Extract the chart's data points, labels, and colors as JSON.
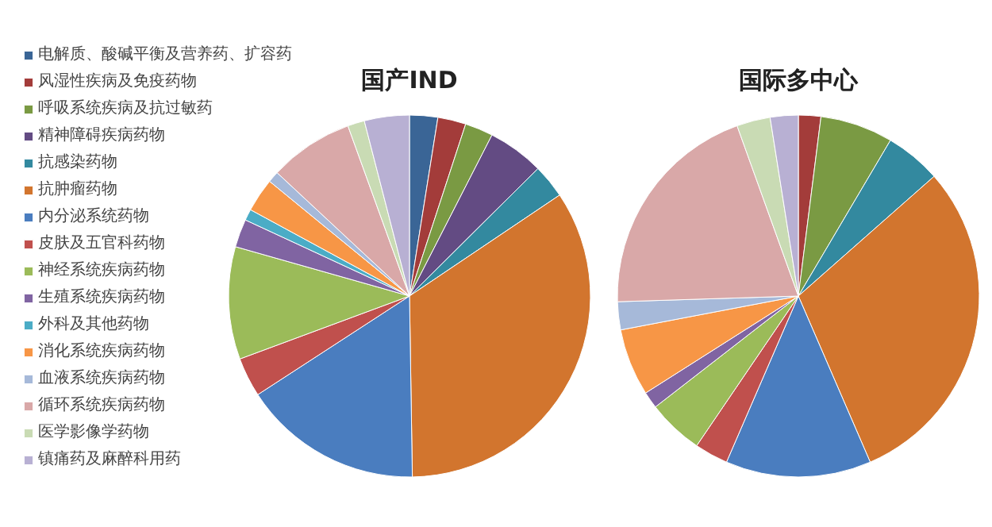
{
  "chart_data": {
    "type": "pie",
    "legend": "left",
    "categories": [
      "电解质、酸碱平衡及营养药、扩容药",
      "风湿性疾病及免疫药物",
      "呼吸系统疾病及抗过敏药",
      "精神障碍疾病药物",
      "抗感染药物",
      "抗肿瘤药物",
      "内分泌系统药物",
      "皮肤及五官科药物",
      "神经系统疾病药物",
      "生殖系统疾病药物",
      "外科及其他药物",
      "消化系统疾病药物",
      "血液系统疾病药物",
      "循环系统疾病药物",
      "医学影像学药物",
      "镇痛药及麻醉科用药"
    ],
    "colors": [
      "#3a6596",
      "#a33c3a",
      "#7a9a43",
      "#634b83",
      "#33899f",
      "#d2752e",
      "#4a7dbf",
      "#c0504d",
      "#9bbb59",
      "#8064a2",
      "#4bacc6",
      "#f79646",
      "#a6b9d9",
      "#d9a8a8",
      "#c9dbb4",
      "#b8b0d3"
    ],
    "series": [
      {
        "name": "国产IND",
        "values": [
          2.5,
          2.5,
          2.5,
          5,
          3,
          34,
          16,
          3.5,
          10,
          2.5,
          1,
          3,
          1,
          7.5,
          1.5,
          4
        ]
      },
      {
        "name": "国际多中心",
        "values": [
          0,
          2,
          6.5,
          0,
          5,
          30,
          13,
          3,
          5,
          1.5,
          0,
          6,
          2.5,
          20,
          3,
          2.5
        ]
      }
    ]
  }
}
